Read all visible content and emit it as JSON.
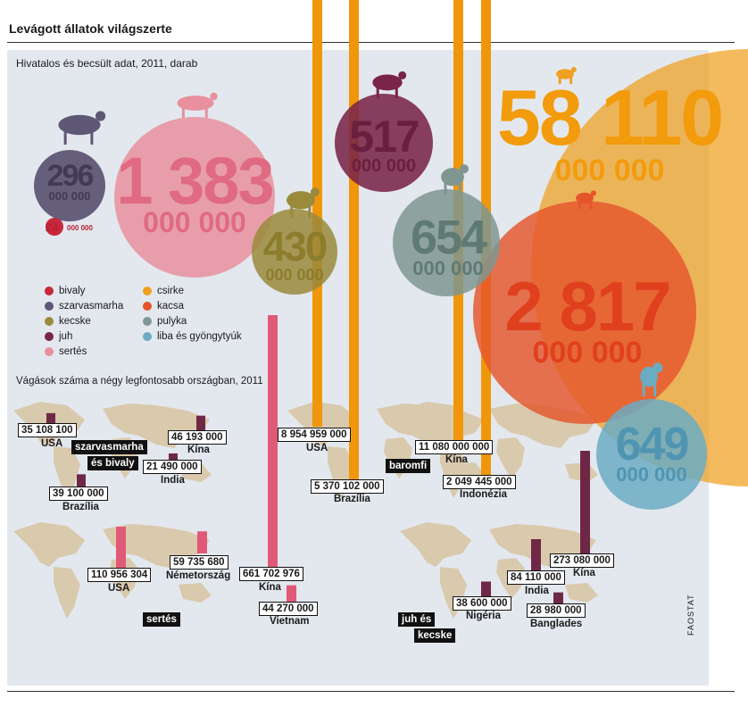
{
  "header": {
    "title": "Levágott állatok világszerte",
    "subtitle": "Hivatalos és becsült adat, 2011, darab",
    "countries_subtitle": "Vágások száma a négy legfontosabb országban, 2011",
    "source": "FAOSTAT"
  },
  "chart_data": [
    {
      "type": "bubble",
      "title": "Levágott állatok világszerte",
      "subtitle": "Hivatalos és becsült adat, 2011, darab",
      "series": [
        {
          "key": "bivaly",
          "name": "bivaly",
          "value": 24000000,
          "label_main": "24",
          "label_sub": "000 000",
          "color": "#c8283c"
        },
        {
          "key": "szarvasmarha",
          "name": "szarvasmarha",
          "value": 296000000,
          "label_main": "296",
          "label_sub": "000 000",
          "color": "#5e5775"
        },
        {
          "key": "kecske",
          "name": "kecske",
          "value": 430000000,
          "label_main": "430",
          "label_sub": "000 000",
          "color": "#9a8a3c"
        },
        {
          "key": "juh",
          "name": "juh",
          "value": 517000000,
          "label_main": "517",
          "label_sub": "000 000",
          "color": "#7a2448"
        },
        {
          "key": "sertes",
          "name": "sertés",
          "value": 1383000000,
          "label_main": "1 383",
          "label_sub": "000 000",
          "color": "#e8909e"
        },
        {
          "key": "csirke",
          "name": "csirke",
          "value": 58110000000,
          "label_main": "58 110",
          "label_sub": "000 000",
          "color": "#f0a020"
        },
        {
          "key": "kacsa",
          "name": "kacsa",
          "value": 2817000000,
          "label_main": "2 817",
          "label_sub": "000 000",
          "color": "#e4552c"
        },
        {
          "key": "pulyka",
          "name": "pulyka",
          "value": 654000000,
          "label_main": "654",
          "label_sub": "000 000",
          "color": "#7f9790"
        },
        {
          "key": "liba",
          "name": "liba és gyöngytyúk",
          "value": 649000000,
          "label_main": "649",
          "label_sub": "000 000",
          "color": "#6cabc4"
        }
      ]
    },
    {
      "type": "bar",
      "title": "Vágások száma a négy legfontosabb országban, 2011",
      "groups": [
        {
          "category": "szarvasmarha és bivaly",
          "tag_lines": [
            "szarvasmarha",
            "és bivaly"
          ],
          "color": "#6e2845",
          "bars": [
            {
              "country": "USA",
              "value": 35108100,
              "label": "35 108 100"
            },
            {
              "country": "Kína",
              "value": 46193000,
              "label": "46 193 000"
            },
            {
              "country": "India",
              "value": 21490000,
              "label": "21 490 000"
            },
            {
              "country": "Brazília",
              "value": 39100000,
              "label": "39 100 000"
            }
          ]
        },
        {
          "category": "baromfi",
          "tag_lines": [
            "baromfi"
          ],
          "color": "#f0960a",
          "bars": [
            {
              "country": "USA",
              "value": 8954959000,
              "label": "8 954 959 000"
            },
            {
              "country": "Brazília",
              "value": 5370102000,
              "label": "5 370 102 000"
            },
            {
              "country": "Kína",
              "value": 11080000000,
              "label": "11 080 000 000"
            },
            {
              "country": "Indonézia",
              "value": 2049445000,
              "label": "2 049 445 000"
            }
          ]
        },
        {
          "category": "sertés",
          "tag_lines": [
            "sertés"
          ],
          "color": "#e05a78",
          "bars": [
            {
              "country": "USA",
              "value": 110956304,
              "label": "110 956 304"
            },
            {
              "country": "Németország",
              "value": 59735680,
              "label": "59 735 680"
            },
            {
              "country": "Kína",
              "value": 661702976,
              "label": "661 702 976"
            },
            {
              "country": "Vietnam",
              "value": 44270000,
              "label": "44 270 000"
            }
          ]
        },
        {
          "category": "juh és kecske",
          "tag_lines": [
            "juh és",
            "kecske"
          ],
          "color": "#6e2845",
          "bars": [
            {
              "country": "Nigéria",
              "value": 38600000,
              "label": "38 600 000"
            },
            {
              "country": "India",
              "value": 84110000,
              "label": "84 110 000"
            },
            {
              "country": "Banglades",
              "value": 28980000,
              "label": "28 980 000"
            },
            {
              "country": "Kína",
              "value": 273080000,
              "label": "273 080 000"
            }
          ]
        }
      ]
    }
  ]
}
